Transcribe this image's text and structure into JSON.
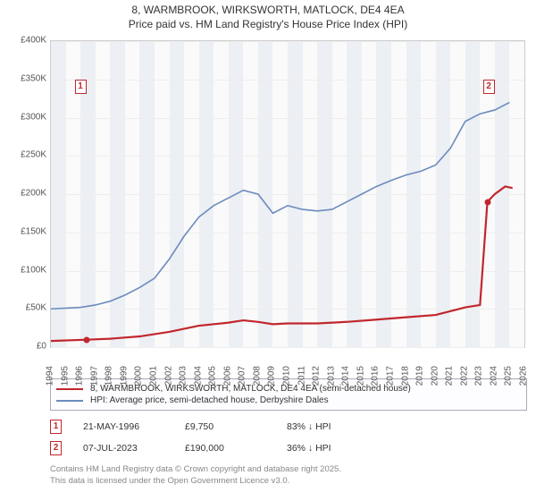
{
  "title": {
    "line1": "8, WARMBROOK, WIRKSWORTH, MATLOCK, DE4 4EA",
    "line2": "Price paid vs. HM Land Registry's House Price Index (HPI)"
  },
  "chart": {
    "type": "line",
    "background_color": "#fafafa",
    "band_color": "#eceff4",
    "grid_color": "#eeeeee",
    "border_color": "#cccccc",
    "ylim": [
      0,
      400000
    ],
    "yticks": [
      0,
      50000,
      100000,
      150000,
      200000,
      250000,
      300000,
      350000,
      400000
    ],
    "ytick_labels": [
      "£0",
      "£50K",
      "£100K",
      "£150K",
      "£200K",
      "£250K",
      "£300K",
      "£350K",
      "£400K"
    ],
    "xlim": [
      1994,
      2026
    ],
    "xticks": [
      1994,
      1995,
      1996,
      1997,
      1998,
      1999,
      2000,
      2001,
      2002,
      2003,
      2004,
      2005,
      2006,
      2007,
      2008,
      2009,
      2010,
      2011,
      2012,
      2013,
      2014,
      2015,
      2016,
      2017,
      2018,
      2019,
      2020,
      2021,
      2022,
      2023,
      2024,
      2025,
      2026
    ],
    "series": [
      {
        "name": "price_paid",
        "label": "8, WARMBROOK, WIRKSWORTH, MATLOCK, DE4 4EA (semi-detached house)",
        "color": "#c1272d",
        "width": 2.2,
        "points": [
          [
            1994,
            8000
          ],
          [
            1996.4,
            9750
          ],
          [
            1998,
            11000
          ],
          [
            2000,
            14000
          ],
          [
            2002,
            20000
          ],
          [
            2004,
            28000
          ],
          [
            2006,
            32000
          ],
          [
            2007,
            35000
          ],
          [
            2008,
            33000
          ],
          [
            2009,
            30000
          ],
          [
            2010,
            31000
          ],
          [
            2012,
            31000
          ],
          [
            2014,
            33000
          ],
          [
            2016,
            36000
          ],
          [
            2018,
            39000
          ],
          [
            2020,
            42000
          ],
          [
            2021,
            47000
          ],
          [
            2022,
            52000
          ],
          [
            2023,
            55000
          ],
          [
            2023.5,
            190000
          ],
          [
            2024,
            200000
          ],
          [
            2024.7,
            210000
          ],
          [
            2025.2,
            208000
          ]
        ]
      },
      {
        "name": "hpi",
        "label": "HPI: Average price, semi-detached house, Derbyshire Dales",
        "color": "#6b8bbd",
        "width": 1.6,
        "points": [
          [
            1994,
            50000
          ],
          [
            1995,
            51000
          ],
          [
            1996,
            52000
          ],
          [
            1997,
            55000
          ],
          [
            1998,
            60000
          ],
          [
            1999,
            68000
          ],
          [
            2000,
            78000
          ],
          [
            2001,
            90000
          ],
          [
            2002,
            115000
          ],
          [
            2003,
            145000
          ],
          [
            2004,
            170000
          ],
          [
            2005,
            185000
          ],
          [
            2006,
            195000
          ],
          [
            2007,
            205000
          ],
          [
            2008,
            200000
          ],
          [
            2009,
            175000
          ],
          [
            2010,
            185000
          ],
          [
            2011,
            180000
          ],
          [
            2012,
            178000
          ],
          [
            2013,
            180000
          ],
          [
            2014,
            190000
          ],
          [
            2015,
            200000
          ],
          [
            2016,
            210000
          ],
          [
            2017,
            218000
          ],
          [
            2018,
            225000
          ],
          [
            2019,
            230000
          ],
          [
            2020,
            238000
          ],
          [
            2021,
            260000
          ],
          [
            2022,
            295000
          ],
          [
            2023,
            305000
          ],
          [
            2024,
            310000
          ],
          [
            2025,
            320000
          ]
        ]
      }
    ],
    "markers": [
      {
        "id": "1",
        "x": 1996.4,
        "y": 9750,
        "color": "#c1272d",
        "callout_pos": [
          1995.6,
          350000
        ]
      },
      {
        "id": "2",
        "x": 2023.5,
        "y": 190000,
        "color": "#c1272d",
        "callout_pos": [
          2023.2,
          350000
        ]
      }
    ]
  },
  "legend": {
    "items": [
      {
        "color": "#c1272d",
        "label": "8, WARMBROOK, WIRKSWORTH, MATLOCK, DE4 4EA (semi-detached house)"
      },
      {
        "color": "#6b8bbd",
        "label": "HPI: Average price, semi-detached house, Derbyshire Dales"
      }
    ]
  },
  "transactions": [
    {
      "id": "1",
      "date": "21-MAY-1996",
      "price": "£9,750",
      "delta": "83% ↓ HPI"
    },
    {
      "id": "2",
      "date": "07-JUL-2023",
      "price": "£190,000",
      "delta": "36% ↓ HPI"
    }
  ],
  "footer": {
    "line1": "Contains HM Land Registry data © Crown copyright and database right 2025.",
    "line2": "This data is licensed under the Open Government Licence v3.0."
  }
}
